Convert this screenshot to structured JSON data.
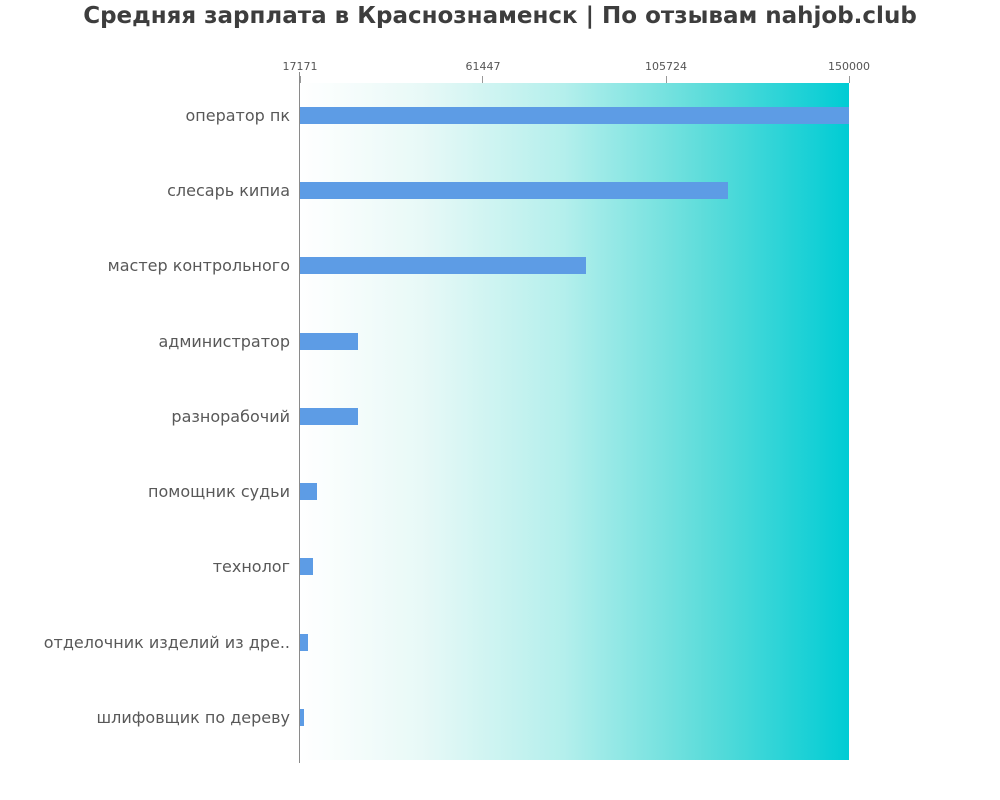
{
  "chart_data": {
    "type": "bar",
    "orientation": "horizontal",
    "title": "Средняя зарплата в Краснознаменск | По отзывам nahjob.club",
    "categories": [
      "оператор пк",
      "слесарь кипиа",
      "мастер контрольного",
      "администратор",
      "разнорабочий",
      "помощник судьи",
      "технолог",
      "отделочник изделий из дре..",
      "шлифовщик по дереву"
    ],
    "values": [
      150000,
      120700,
      86400,
      31200,
      31100,
      21300,
      20300,
      19100,
      17171
    ],
    "xlim": [
      17171,
      150000
    ],
    "x_ticks": [
      17171,
      61447,
      105724,
      150000
    ],
    "x_tick_labels": [
      "17171",
      "61447",
      "105724",
      "150000"
    ],
    "xlabel": "",
    "ylabel": "",
    "grid": false,
    "legend": null,
    "tick_position": "top",
    "bar_color": "#5d9ce5",
    "plot_bg_gradient_stops": [
      "#ffffff",
      "#e8f9f7",
      "#b4efec",
      "#5cdcda",
      "#00ccd4"
    ],
    "plot_bg_gradient_positions": [
      0,
      22,
      48,
      74,
      100
    ],
    "axis_color": "#8a8a8a",
    "tick_label_color": "#555555",
    "category_label_color": "#585858",
    "title_color": "#3d3d3d"
  }
}
